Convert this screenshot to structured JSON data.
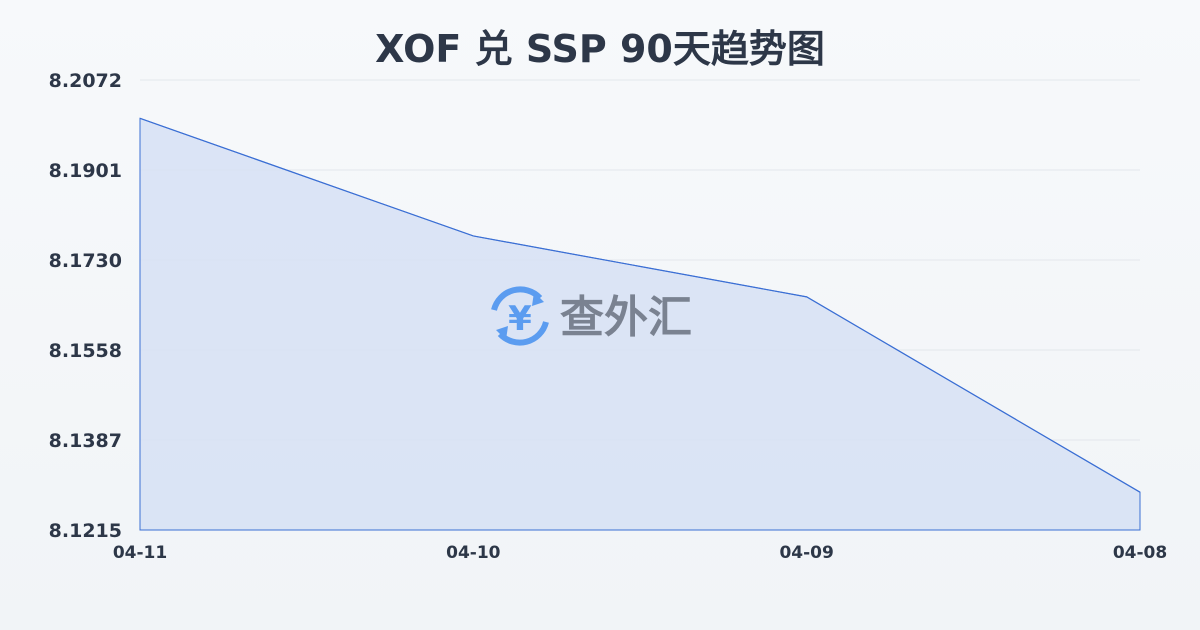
{
  "chart_data": {
    "type": "area",
    "title": "XOF 兑 SSP 90天趋势图",
    "categories": [
      "04-11",
      "04-10",
      "04-09",
      "04-08"
    ],
    "series": [
      {
        "values": [
          8.1999,
          8.1775,
          8.1659,
          8.1287
        ]
      }
    ],
    "yticks": [
      "8.2072",
      "8.1901",
      "8.1730",
      "8.1558",
      "8.1387",
      "8.1215"
    ],
    "ylim": [
      8.1215,
      8.2072
    ],
    "grid": true,
    "line_color": "#3b6fd4",
    "fill_color": "#d6e1f5"
  },
  "watermark": {
    "text": "查外汇",
    "icon": "yen-exchange-icon",
    "color": "#4a8fe8"
  }
}
